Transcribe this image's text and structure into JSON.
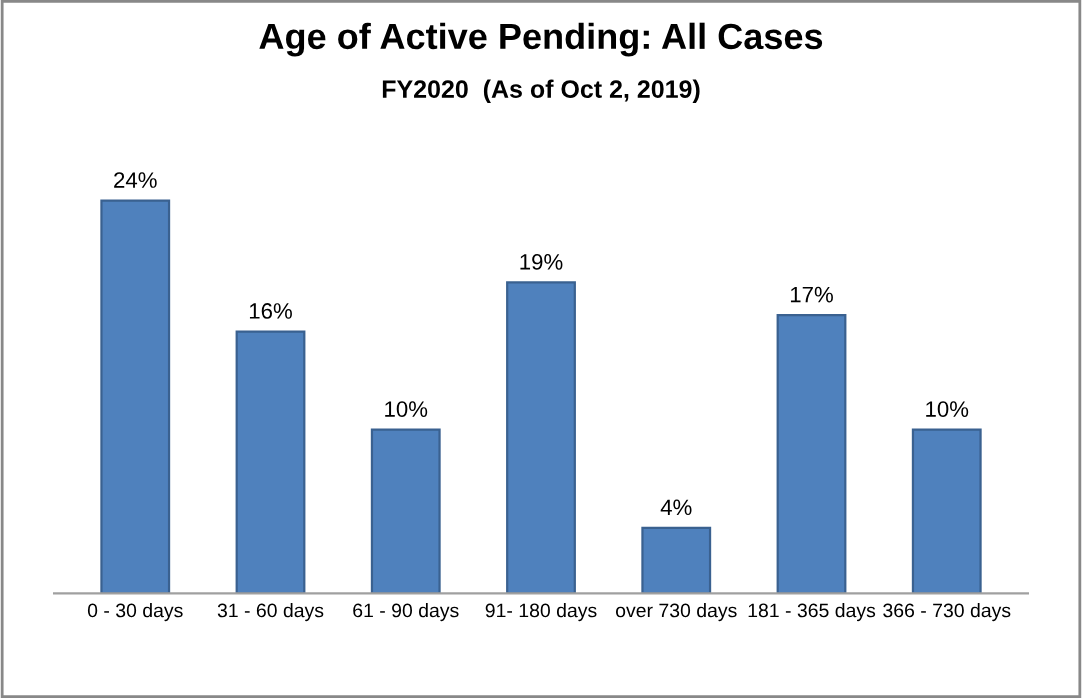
{
  "chart_data": {
    "type": "bar",
    "title": "Age of Active Pending: All Cases",
    "subtitle": "FY2020  (As of Oct 2, 2019)",
    "categories": [
      "0 - 30 days",
      "31 - 60 days",
      "61 - 90 days",
      "91- 180 days",
      "over 730 days",
      "181 - 365 days",
      "366 - 730 days"
    ],
    "values": [
      24,
      16,
      10,
      19,
      4,
      17,
      10
    ],
    "value_labels": [
      "24%",
      "16%",
      "10%",
      "19%",
      "4%",
      "17%",
      "10%"
    ],
    "color": "#4f81bd",
    "grid": false,
    "legend": false
  }
}
